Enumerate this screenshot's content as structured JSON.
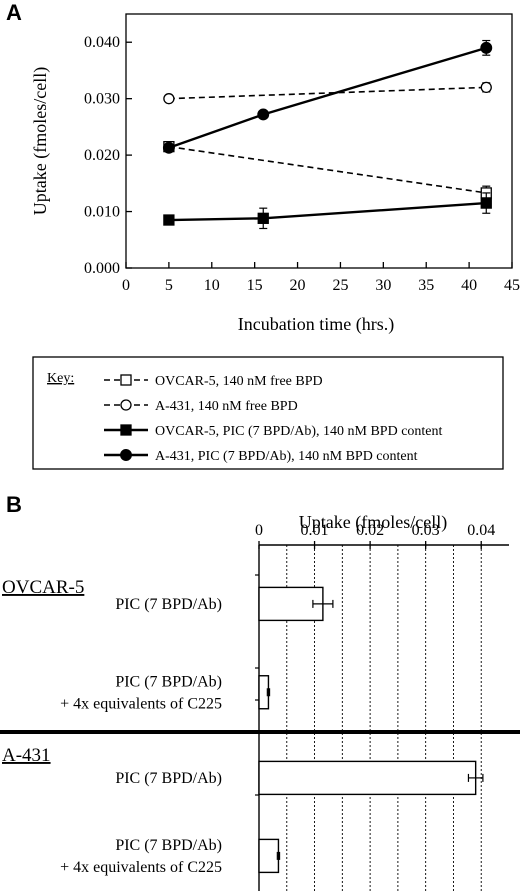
{
  "panels": {
    "a_label": "A",
    "b_label": "B"
  },
  "chart_data": [
    {
      "type": "line",
      "panel": "A",
      "xlabel": "Incubation time (hrs.)",
      "ylabel": "Uptake (fmoles/cell)",
      "xlim": [
        0,
        45
      ],
      "ylim": [
        0,
        0.045
      ],
      "xticks": [
        "0",
        "5",
        "10",
        "15",
        "20",
        "25",
        "30",
        "35",
        "40",
        "45"
      ],
      "yticks": [
        "0.000",
        "0.010",
        "0.020",
        "0.030",
        "0.040"
      ],
      "grid": false,
      "legend_title": "Key:",
      "legend_position": "bottom",
      "series": [
        {
          "name": "OVCAR-5, 140 nM free BPD",
          "x": [
            5,
            42
          ],
          "y": [
            0.0215,
            0.0133
          ],
          "err": [
            0.0008,
            0.0012
          ],
          "line": "dashed",
          "marker": "open-square"
        },
        {
          "name": "A-431, 140 nM free BPD",
          "x": [
            5,
            42
          ],
          "y": [
            0.03,
            0.032
          ],
          "err": [
            0.0005,
            0.0008
          ],
          "line": "dashed",
          "marker": "open-circle"
        },
        {
          "name": "OVCAR-5, PIC (7 BPD/Ab), 140 nM BPD content",
          "x": [
            5,
            16,
            42
          ],
          "y": [
            0.0085,
            0.0088,
            0.0115
          ],
          "err": [
            0.0004,
            0.0018,
            0.0018
          ],
          "line": "solid",
          "marker": "filled-square"
        },
        {
          "name": "A-431, PIC (7 BPD/Ab), 140 nM BPD content",
          "x": [
            5,
            16,
            42
          ],
          "y": [
            0.0213,
            0.0272,
            0.039
          ],
          "err": [
            0.0004,
            0.0003,
            0.0013
          ],
          "line": "solid",
          "marker": "filled-circle"
        }
      ]
    },
    {
      "type": "bar",
      "orientation": "horizontal",
      "panel": "B",
      "xlabel": "Uptake (fmoles/cell)",
      "xlim": [
        0,
        0.045
      ],
      "xticks": [
        "0",
        "0.01",
        "0.02",
        "0.03",
        "0.04"
      ],
      "grid": true,
      "groups": [
        {
          "name": "OVCAR-5",
          "bars": [
            {
              "label": [
                "PIC (7 BPD/Ab)"
              ],
              "value": 0.0115,
              "err": 0.0018
            },
            {
              "label": [
                "PIC (7 BPD/Ab)",
                "+ 4x equivalents of C225"
              ],
              "value": 0.0017,
              "err": 0.0002
            }
          ]
        },
        {
          "name": "A-431",
          "bars": [
            {
              "label": [
                "PIC (7 BPD/Ab)"
              ],
              "value": 0.039,
              "err": 0.0013
            },
            {
              "label": [
                "PIC (7 BPD/Ab)",
                "+ 4x equivalents of C225"
              ],
              "value": 0.0035,
              "err": 0.0002
            }
          ]
        }
      ]
    }
  ]
}
